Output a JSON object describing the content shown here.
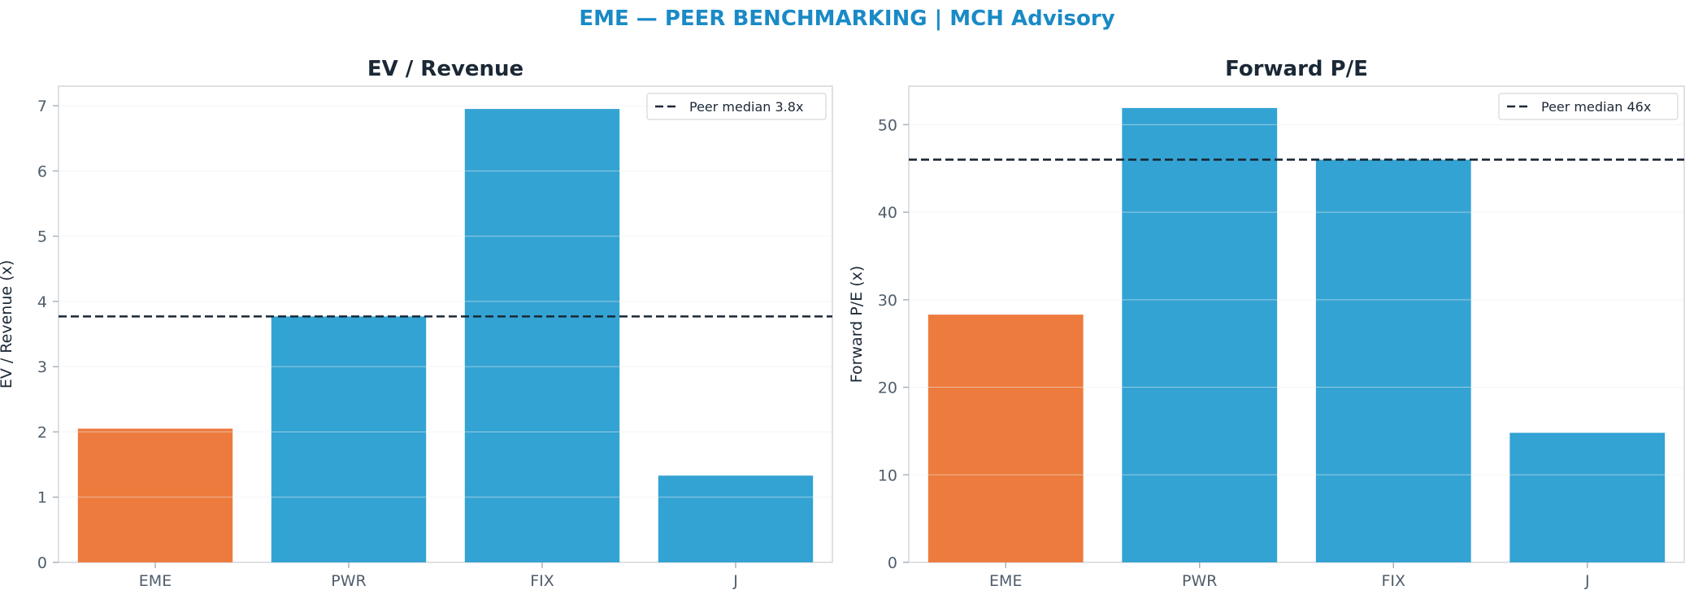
{
  "figure_title": "EME — PEER BENCHMARKING | MCH Advisory",
  "colors": {
    "highlight": "#ed7b3d",
    "peer": "#33a3d3",
    "median_line": "#1b2836",
    "title": "#1a8ac6"
  },
  "chart_data": [
    {
      "type": "bar",
      "title": "EV / Revenue",
      "xlabel": "",
      "ylabel": "EV / Revenue (x)",
      "categories": [
        "EME",
        "PWR",
        "FIX",
        "J"
      ],
      "values": [
        2.05,
        3.77,
        6.95,
        1.33
      ],
      "highlight": "EME",
      "ylim": [
        0,
        7.3
      ],
      "yticks": [
        "0",
        "1",
        "2",
        "3",
        "4",
        "5",
        "6",
        "7"
      ],
      "reference_line": {
        "value": 3.77,
        "label": "Peer median 3.8x"
      },
      "legend": "top-right",
      "grid": true
    },
    {
      "type": "bar",
      "title": "Forward P/E",
      "xlabel": "",
      "ylabel": "Forward P/E (x)",
      "categories": [
        "EME",
        "PWR",
        "FIX",
        "J"
      ],
      "values": [
        28.3,
        51.9,
        46.0,
        14.8
      ],
      "highlight": "EME",
      "ylim": [
        0,
        54.4
      ],
      "yticks": [
        "0",
        "10",
        "20",
        "30",
        "40",
        "50"
      ],
      "reference_line": {
        "value": 46.0,
        "label": "Peer median 46x"
      },
      "legend": "top-right",
      "grid": true
    }
  ]
}
